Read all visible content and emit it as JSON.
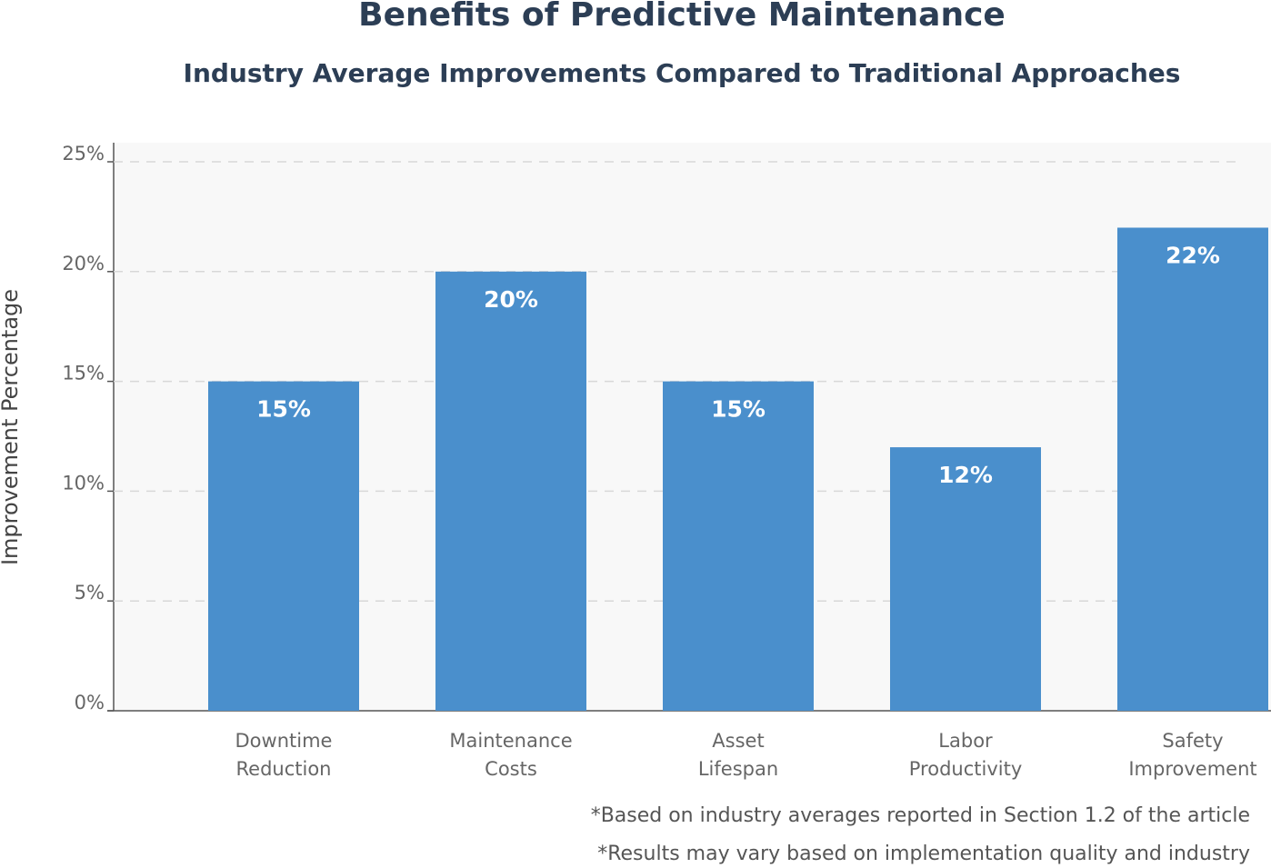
{
  "chart_data": {
    "type": "bar",
    "title": "Benefits of Predictive Maintenance",
    "subtitle": "Industry Average Improvements Compared to Traditional Approaches",
    "y_label": "Improvement Percentage",
    "categories": [
      [
        "Downtime",
        "Reduction"
      ],
      [
        "Maintenance",
        "Costs"
      ],
      [
        "Asset",
        "Lifespan"
      ],
      [
        "Labor",
        "Productivity"
      ],
      [
        "Safety",
        "Improvement"
      ]
    ],
    "values": [
      15,
      20,
      15,
      12,
      22
    ],
    "value_labels": [
      "15%",
      "20%",
      "15%",
      "12%",
      "22%"
    ],
    "color": "#4a8fcc",
    "ylim": [
      0,
      25
    ],
    "yticks": [
      {
        "value": 0,
        "label": "0%"
      },
      {
        "value": 5,
        "label": "5%"
      },
      {
        "value": 10,
        "label": "10%"
      },
      {
        "value": 15,
        "label": "15%"
      },
      {
        "value": 20,
        "label": "20%"
      },
      {
        "value": 25,
        "label": "25%"
      }
    ],
    "grid": true,
    "notes": [
      "*Based on industry averages reported in Section 1.2 of the article",
      "*Results may vary based on implementation quality and industry"
    ]
  }
}
